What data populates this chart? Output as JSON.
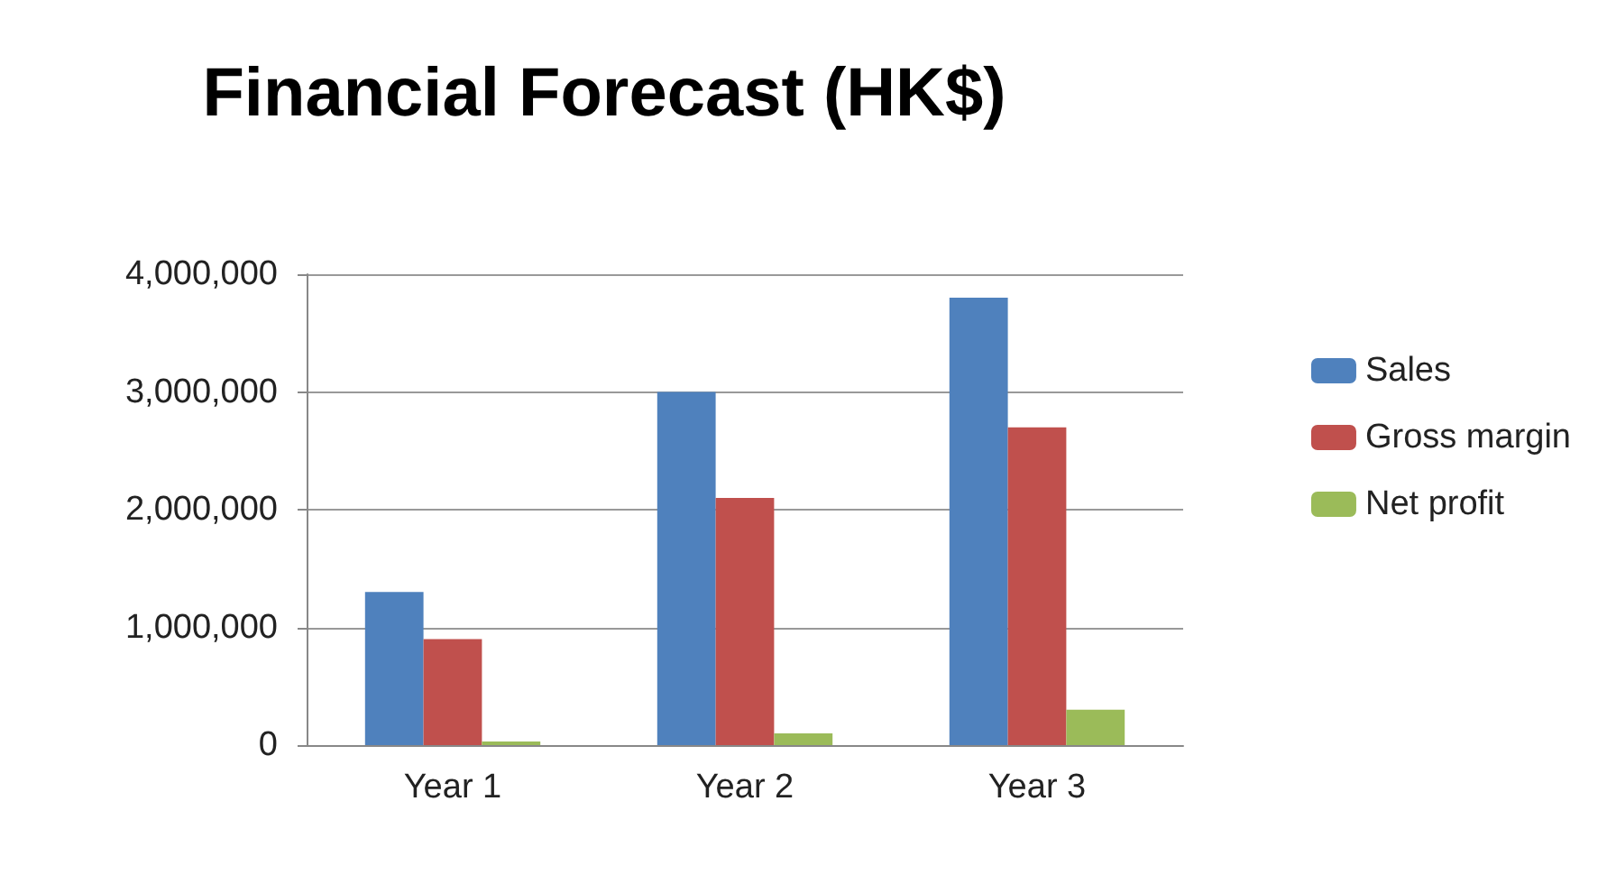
{
  "chart_data": {
    "type": "bar",
    "title": "Financial Forecast (HK$)",
    "categories": [
      "Year 1",
      "Year 2",
      "Year 3"
    ],
    "series": [
      {
        "name": "Sales",
        "color": "#4f81bd",
        "values": [
          1300000,
          3000000,
          3800000
        ]
      },
      {
        "name": "Gross margin",
        "color": "#c0504d",
        "values": [
          900000,
          2100000,
          2700000
        ]
      },
      {
        "name": "Net profit",
        "color": "#9bbb59",
        "values": [
          30000,
          100000,
          300000
        ]
      }
    ],
    "ylim": [
      0,
      4000000
    ],
    "yticks": [
      0,
      {
        "value": 1000000,
        "label": "1,000,000"
      },
      {
        "value": 2000000,
        "label": "2,000,000"
      },
      {
        "value": 3000000,
        "label": "3,000,000"
      },
      {
        "value": 4000000,
        "label": "4,000,000"
      }
    ],
    "grid": "y",
    "legend": "right"
  }
}
